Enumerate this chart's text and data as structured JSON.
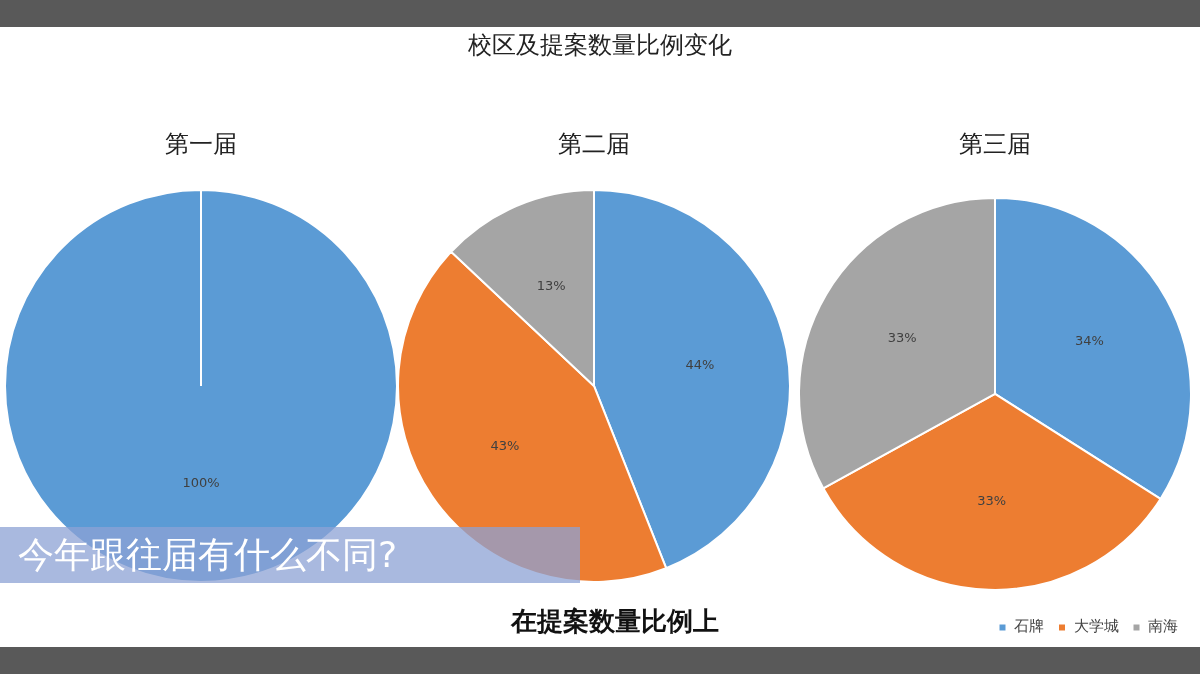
{
  "chart_data": [
    {
      "type": "other",
      "title": "校区及提案数量比例变化",
      "annotations": [
        "今年跟往届有什么不同?",
        "在提案数量比例上"
      ]
    },
    {
      "type": "pie",
      "title": "第一届",
      "categories": [
        null,
        null,
        null
      ],
      "values": [
        100,
        0,
        0
      ],
      "colors": [
        "#5b9bd5",
        "#ed7d31",
        "#a5a5a5"
      ],
      "value_labels": [
        "100%",
        null,
        null
      ]
    },
    {
      "type": "pie",
      "title": "第二届",
      "categories": [
        null,
        null,
        null
      ],
      "values": [
        44,
        43,
        13
      ],
      "colors": [
        "#5b9bd5",
        "#ed7d31",
        "#a5a5a5"
      ],
      "value_labels": [
        "44%",
        "43%",
        "13%"
      ]
    },
    {
      "type": "pie",
      "title": "第三届",
      "categories": [
        "石牌",
        "大学城",
        "南海"
      ],
      "values": [
        34,
        33,
        33
      ],
      "colors": [
        "#5b9bd5",
        "#ed7d31",
        "#a5a5a5"
      ],
      "value_labels": [
        "34%",
        "33%",
        "33%"
      ],
      "legend": "bottom right"
    }
  ]
}
